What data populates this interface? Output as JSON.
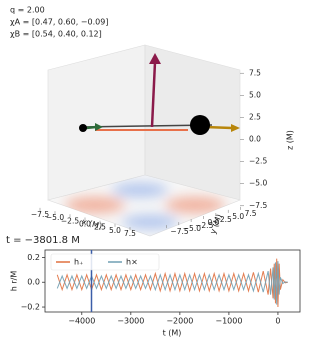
{
  "chart_data": [
    {
      "type": "scatter3d",
      "annotations": [
        "q = 2.00",
        "χA = [0.47, 0.60, −0.09]",
        "χB = [0.54, 0.40, 0.12]"
      ],
      "xlabel": "x (M)",
      "ylabel": "y (M)",
      "zlabel": "z (M)",
      "xlim": [
        -9,
        9
      ],
      "ylim": [
        -9,
        9
      ],
      "zlim": [
        -9,
        9
      ],
      "xticks": [
        {
          "value": -7.5,
          "label": "−7.5"
        },
        {
          "value": -5.0,
          "label": "−5.0"
        },
        {
          "value": -2.5,
          "label": "−2.5"
        },
        {
          "value": 0.0,
          "label": "0.0"
        },
        {
          "value": 2.5,
          "label": "2.5"
        },
        {
          "value": 5.0,
          "label": "5.0"
        },
        {
          "value": 7.5,
          "label": "7.5"
        }
      ],
      "yticks": [
        {
          "value": -7.5,
          "label": "−7.5"
        },
        {
          "value": -5.0,
          "label": "−5.0"
        },
        {
          "value": -2.5,
          "label": "−2.5"
        },
        {
          "value": 0.0,
          "label": "0.0"
        },
        {
          "value": 2.5,
          "label": "2.5"
        },
        {
          "value": 5.0,
          "label": "5.0"
        },
        {
          "value": 7.5,
          "label": "7.5"
        }
      ],
      "zticks": [
        {
          "value": 7.5,
          "label": "7.5"
        },
        {
          "value": 5.0,
          "label": "5.0"
        },
        {
          "value": 2.5,
          "label": "2.5"
        },
        {
          "value": 0.0,
          "label": "0.0"
        },
        {
          "value": -2.5,
          "label": "−2.5"
        },
        {
          "value": -5.0,
          "label": "−5.0"
        },
        {
          "value": -7.5,
          "label": "−7.5"
        }
      ]
    },
    {
      "type": "line",
      "title": "t = −3801.8 M",
      "marker_x": -3801.8,
      "marker_color": "#3b5ea8",
      "xlabel": "t (M)",
      "ylabel": "h r/M",
      "xlim": [
        -4750,
        450
      ],
      "ylim": [
        -0.24,
        0.26
      ],
      "xticks": [
        {
          "value": -4000,
          "label": "−4000"
        },
        {
          "value": -3000,
          "label": "−3000"
        },
        {
          "value": -2000,
          "label": "−2000"
        },
        {
          "value": -1000,
          "label": "−1000"
        },
        0
      ],
      "yticks": [
        0.2,
        {
          "value": 0.0,
          "label": "0.0"
        },
        {
          "value": -0.2,
          "label": "−0.2"
        }
      ],
      "x": [
        -4500,
        -4400,
        -4300,
        -4200,
        -4100,
        -4000,
        -3900,
        -3800,
        -3700,
        -3600,
        -3500,
        -3400,
        -3300,
        -3200,
        -3100,
        -3000,
        -2900,
        -2800,
        -2700,
        -2600,
        -2500,
        -2400,
        -2300,
        -2200,
        -2100,
        -2000,
        -1900,
        -1800,
        -1700,
        -1600,
        -1500,
        -1400,
        -1300,
        -1200,
        -1100,
        -1000,
        -900,
        -800,
        -700,
        -600,
        -500,
        -400,
        -300,
        -200,
        -150,
        -100,
        -75,
        -50,
        -25,
        0,
        25,
        50,
        100,
        150,
        200
      ],
      "series": [
        {
          "name": "h₊",
          "color": "#e0703f",
          "values": [
            0.06,
            -0.06,
            0.06,
            -0.06,
            0.06,
            -0.06,
            0.06,
            -0.06,
            0.06,
            -0.06,
            0.06,
            -0.06,
            0.06,
            -0.06,
            0.06,
            -0.06,
            0.06,
            -0.06,
            0.06,
            -0.06,
            0.07,
            -0.07,
            0.07,
            -0.07,
            0.07,
            -0.07,
            0.07,
            -0.07,
            0.07,
            -0.07,
            0.07,
            -0.07,
            0.07,
            -0.07,
            0.07,
            -0.07,
            0.07,
            -0.07,
            0.07,
            -0.07,
            0.08,
            -0.08,
            0.09,
            -0.1,
            0.11,
            -0.13,
            0.15,
            -0.17,
            0.19,
            -0.2,
            0.15,
            -0.06,
            0.02,
            -0.005,
            0
          ]
        },
        {
          "name": "h×",
          "color": "#6f9fb3",
          "values": [
            -0.05,
            0.05,
            -0.05,
            0.05,
            -0.05,
            0.05,
            -0.05,
            0.05,
            -0.05,
            0.05,
            -0.05,
            0.05,
            -0.05,
            0.05,
            -0.05,
            0.05,
            -0.05,
            0.05,
            -0.05,
            0.05,
            -0.06,
            0.06,
            -0.06,
            0.06,
            -0.06,
            0.06,
            -0.06,
            0.06,
            -0.06,
            0.06,
            -0.06,
            0.06,
            -0.06,
            0.06,
            -0.06,
            0.06,
            -0.06,
            0.06,
            -0.06,
            0.06,
            -0.07,
            0.07,
            -0.08,
            0.09,
            -0.1,
            0.12,
            -0.14,
            0.16,
            -0.18,
            0.17,
            -0.1,
            0.04,
            -0.01,
            0.003,
            0
          ]
        }
      ]
    }
  ]
}
